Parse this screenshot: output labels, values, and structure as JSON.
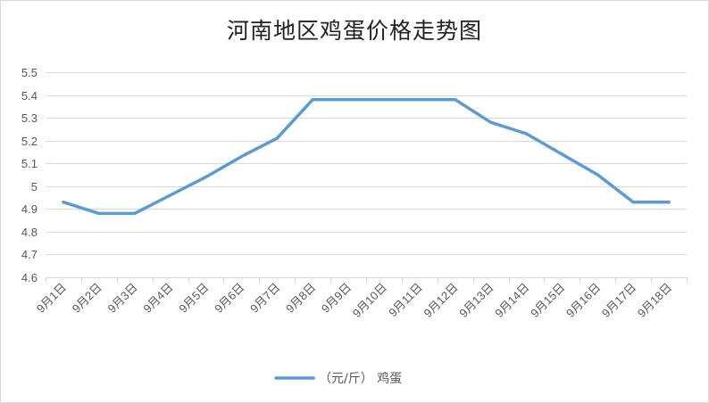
{
  "chart_data": {
    "type": "line",
    "title": "河南地区鸡蛋价格走势图",
    "categories": [
      "9月1日",
      "9月2日",
      "9月3日",
      "9月4日",
      "9月5日",
      "9月6日",
      "9月7日",
      "9月8日",
      "9月9日",
      "9月10日",
      "9月11日",
      "9月12日",
      "9月13日",
      "9月14日",
      "9月15日",
      "9月16日",
      "9月17日",
      "9月18日"
    ],
    "series": [
      {
        "name": "（元/斤） 鸡蛋",
        "color": "#5b9bd5",
        "values": [
          4.93,
          4.88,
          4.88,
          4.96,
          5.04,
          5.13,
          5.21,
          5.38,
          5.38,
          5.38,
          5.38,
          5.38,
          5.28,
          5.23,
          5.14,
          5.05,
          4.93,
          4.93
        ]
      }
    ],
    "ylim": [
      4.6,
      5.5
    ],
    "yticks": [
      "4.6",
      "4.7",
      "4.8",
      "4.9",
      "5",
      "5.1",
      "5.2",
      "5.3",
      "5.4",
      "5.5"
    ],
    "xlabel": "",
    "ylabel": "",
    "grid": true,
    "legend_position": "bottom"
  }
}
